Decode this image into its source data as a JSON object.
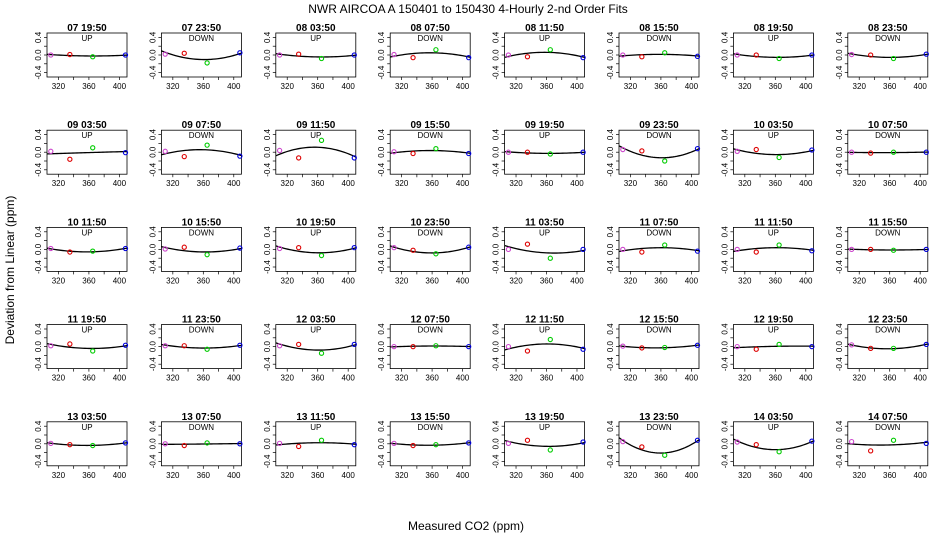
{
  "figure": {
    "title": "NWR   AIRCOA A   150401 to 150430   4-Hourly 2-nd Order Fits",
    "xlabel": "Measured CO2 (ppm)",
    "ylabel": "Deviation from Linear (ppm)"
  },
  "chart_data": {
    "type": "scatter",
    "xlim": [
      305,
      410
    ],
    "ylim": [
      -0.5,
      0.5
    ],
    "xticks": [
      320,
      340,
      360,
      380,
      400
    ],
    "yticks": [
      -0.4,
      -0.2,
      0.0,
      0.2,
      0.4
    ],
    "xtick_labels": [
      "320",
      "360",
      "400"
    ],
    "ytick_labels": [
      "-0.4",
      "0.0",
      "0.4"
    ],
    "grid": false,
    "point_x": [
      310,
      335,
      365,
      408
    ],
    "point_colors": [
      "#cc44cc",
      "#dd0000",
      "#00cc00",
      "#0000dd"
    ],
    "panels": [
      {
        "time": "07 19:50",
        "dir": "UP",
        "y": [
          0.0,
          0.01,
          -0.04,
          0.0
        ]
      },
      {
        "time": "07 23:50",
        "dir": "DOWN",
        "y": [
          0.02,
          0.04,
          -0.18,
          0.05
        ]
      },
      {
        "time": "08 03:50",
        "dir": "UP",
        "y": [
          0.0,
          0.02,
          -0.08,
          0.0
        ]
      },
      {
        "time": "08 07:50",
        "dir": "DOWN",
        "y": [
          0.01,
          -0.06,
          0.12,
          -0.06
        ]
      },
      {
        "time": "08 11:50",
        "dir": "UP",
        "y": [
          0.0,
          -0.04,
          0.12,
          -0.06
        ]
      },
      {
        "time": "08 15:50",
        "dir": "DOWN",
        "y": [
          0.0,
          -0.04,
          0.05,
          -0.03
        ]
      },
      {
        "time": "08 19:50",
        "dir": "UP",
        "y": [
          0.0,
          0.0,
          -0.08,
          0.0
        ]
      },
      {
        "time": "08 23:50",
        "dir": "DOWN",
        "y": [
          0.01,
          0.0,
          -0.08,
          0.02
        ]
      },
      {
        "time": "09 03:50",
        "dir": "UP",
        "y": [
          0.02,
          -0.16,
          0.1,
          -0.01
        ]
      },
      {
        "time": "09 07:50",
        "dir": "DOWN",
        "y": [
          0.02,
          -0.1,
          0.16,
          -0.09
        ]
      },
      {
        "time": "09 11:50",
        "dir": "UP",
        "y": [
          0.04,
          -0.13,
          0.27,
          -0.13
        ]
      },
      {
        "time": "09 15:50",
        "dir": "DOWN",
        "y": [
          0.01,
          -0.03,
          0.08,
          -0.03
        ]
      },
      {
        "time": "09 19:50",
        "dir": "UP",
        "y": [
          0.0,
          0.0,
          -0.04,
          0.0
        ]
      },
      {
        "time": "09 23:50",
        "dir": "DOWN",
        "y": [
          0.06,
          0.03,
          -0.2,
          0.08
        ]
      },
      {
        "time": "10 03:50",
        "dir": "UP",
        "y": [
          0.02,
          0.06,
          -0.12,
          0.05
        ]
      },
      {
        "time": "10 07:50",
        "dir": "DOWN",
        "y": [
          0.0,
          -0.02,
          0.0,
          0.0
        ]
      },
      {
        "time": "10 11:50",
        "dir": "UP",
        "y": [
          0.02,
          -0.06,
          -0.04,
          0.02
        ]
      },
      {
        "time": "10 15:50",
        "dir": "DOWN",
        "y": [
          0.01,
          0.05,
          -0.12,
          0.03
        ]
      },
      {
        "time": "10 19:50",
        "dir": "UP",
        "y": [
          0.02,
          0.04,
          -0.14,
          0.04
        ]
      },
      {
        "time": "10 23:50",
        "dir": "DOWN",
        "y": [
          0.04,
          -0.02,
          -0.1,
          0.05
        ]
      },
      {
        "time": "11 03:50",
        "dir": "UP",
        "y": [
          0.0,
          0.12,
          -0.2,
          0.0
        ]
      },
      {
        "time": "11 07:50",
        "dir": "DOWN",
        "y": [
          0.0,
          -0.06,
          0.1,
          -0.04
        ]
      },
      {
        "time": "11 11:50",
        "dir": "UP",
        "y": [
          0.0,
          -0.06,
          0.1,
          -0.03
        ]
      },
      {
        "time": "11 15:50",
        "dir": "DOWN",
        "y": [
          0.0,
          0.0,
          -0.02,
          0.0
        ]
      },
      {
        "time": "11 19:50",
        "dir": "UP",
        "y": [
          0.02,
          0.06,
          -0.1,
          0.03
        ]
      },
      {
        "time": "11 23:50",
        "dir": "DOWN",
        "y": [
          0.02,
          0.02,
          -0.06,
          0.03
        ]
      },
      {
        "time": "12 03:50",
        "dir": "UP",
        "y": [
          0.02,
          0.05,
          -0.15,
          0.05
        ]
      },
      {
        "time": "12 07:50",
        "dir": "DOWN",
        "y": [
          0.0,
          0.0,
          0.02,
          0.0
        ]
      },
      {
        "time": "12 11:50",
        "dir": "UP",
        "y": [
          0.0,
          -0.1,
          0.16,
          -0.06
        ]
      },
      {
        "time": "12 15:50",
        "dir": "DOWN",
        "y": [
          0.01,
          -0.03,
          -0.02,
          0.03
        ]
      },
      {
        "time": "12 19:50",
        "dir": "UP",
        "y": [
          0.0,
          -0.06,
          0.05,
          0.0
        ]
      },
      {
        "time": "12 23:50",
        "dir": "DOWN",
        "y": [
          0.04,
          -0.04,
          -0.04,
          0.05
        ]
      },
      {
        "time": "13 03:50",
        "dir": "UP",
        "y": [
          0.01,
          -0.02,
          -0.04,
          0.02
        ]
      },
      {
        "time": "13 07:50",
        "dir": "DOWN",
        "y": [
          0.0,
          -0.04,
          0.02,
          0.0
        ]
      },
      {
        "time": "13 11:50",
        "dir": "UP",
        "y": [
          0.01,
          -0.06,
          0.08,
          -0.02
        ]
      },
      {
        "time": "13 15:50",
        "dir": "DOWN",
        "y": [
          0.01,
          -0.04,
          -0.02,
          0.02
        ]
      },
      {
        "time": "13 19:50",
        "dir": "UP",
        "y": [
          0.01,
          0.08,
          -0.14,
          0.04
        ]
      },
      {
        "time": "13 23:50",
        "dir": "DOWN",
        "y": [
          0.05,
          -0.07,
          -0.26,
          0.08
        ]
      },
      {
        "time": "14 03:50",
        "dir": "UP",
        "y": [
          0.04,
          -0.02,
          -0.18,
          0.06
        ]
      },
      {
        "time": "14 07:50",
        "dir": "DOWN",
        "y": [
          0.05,
          -0.16,
          0.08,
          0.01
        ]
      }
    ]
  }
}
